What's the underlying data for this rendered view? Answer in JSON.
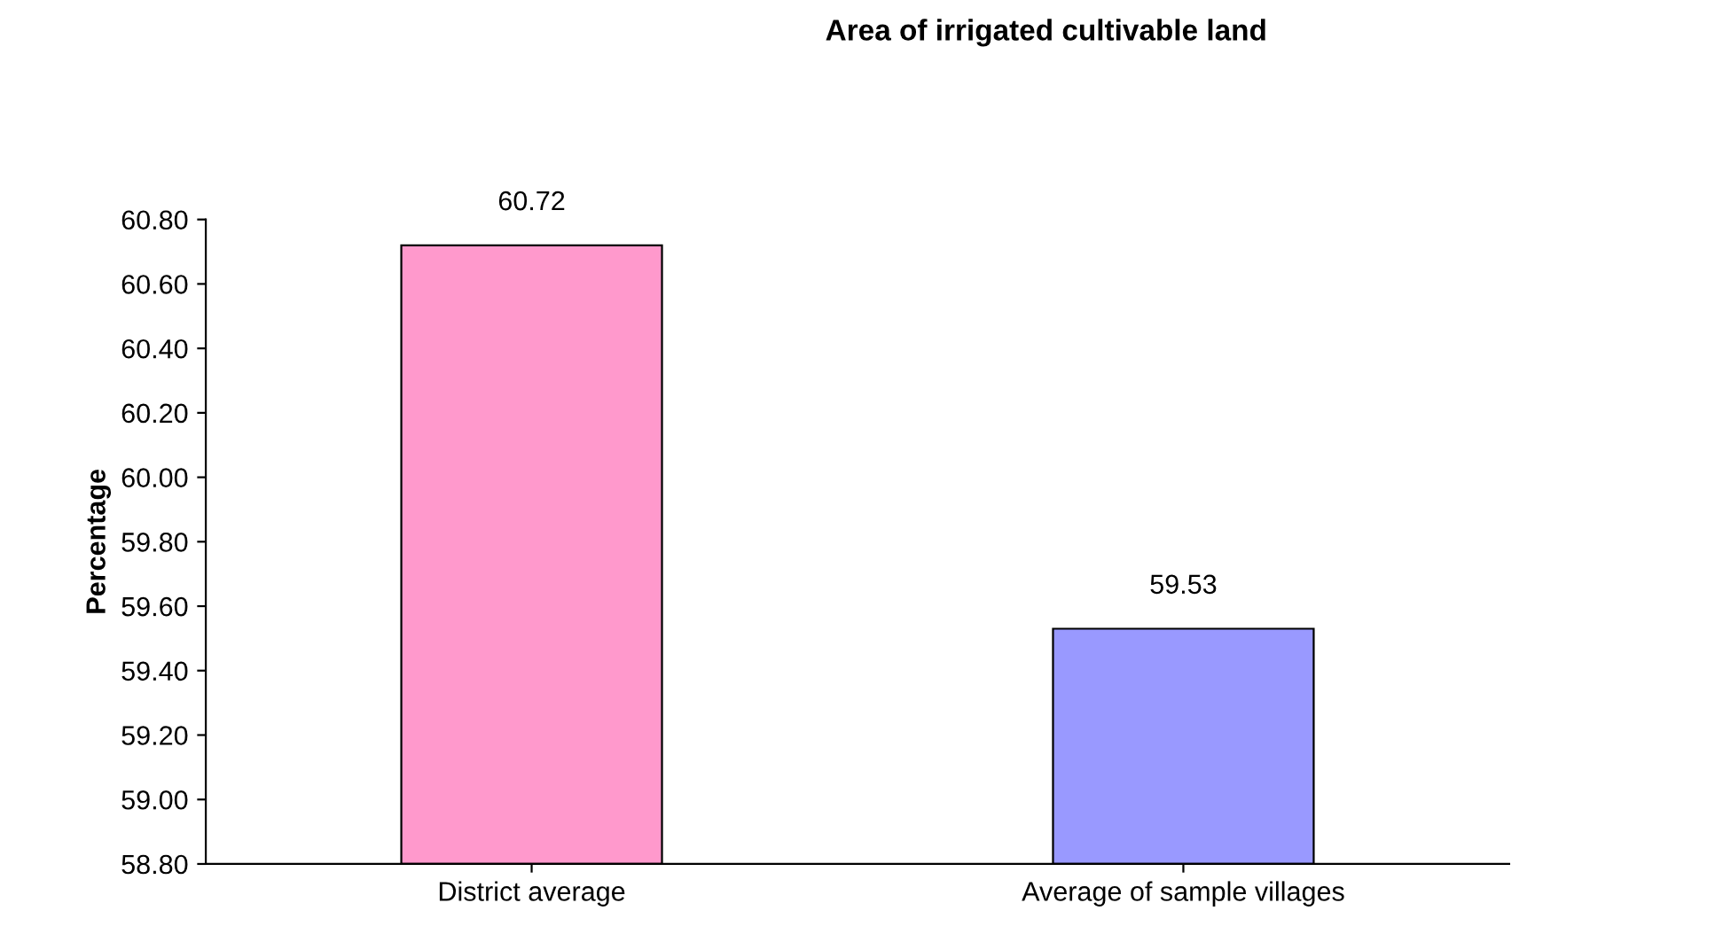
{
  "chart_data": {
    "type": "bar",
    "title": "Area of irrigated cultivable land",
    "ylabel": "Percentage",
    "categories": [
      "District average",
      "Average of sample villages"
    ],
    "values": [
      60.72,
      59.53
    ],
    "colors": [
      "#ff99cc",
      "#9999ff"
    ],
    "ylim": [
      58.8,
      60.8
    ],
    "yticks": [
      {
        "value": 58.8,
        "label": "58.80"
      },
      {
        "value": 59.0,
        "label": "59.00"
      },
      {
        "value": 59.2,
        "label": "59.20"
      },
      {
        "value": 59.4,
        "label": "59.40"
      },
      {
        "value": 59.6,
        "label": "59.60"
      },
      {
        "value": 59.8,
        "label": "59.80"
      },
      {
        "value": 60.0,
        "label": "60.00"
      },
      {
        "value": 60.2,
        "label": "60.20"
      },
      {
        "value": 60.4,
        "label": "60.40"
      },
      {
        "value": 60.6,
        "label": "60.60"
      },
      {
        "value": 60.8,
        "label": "60.80"
      }
    ],
    "data_labels": true,
    "grid": false,
    "legend": false
  }
}
